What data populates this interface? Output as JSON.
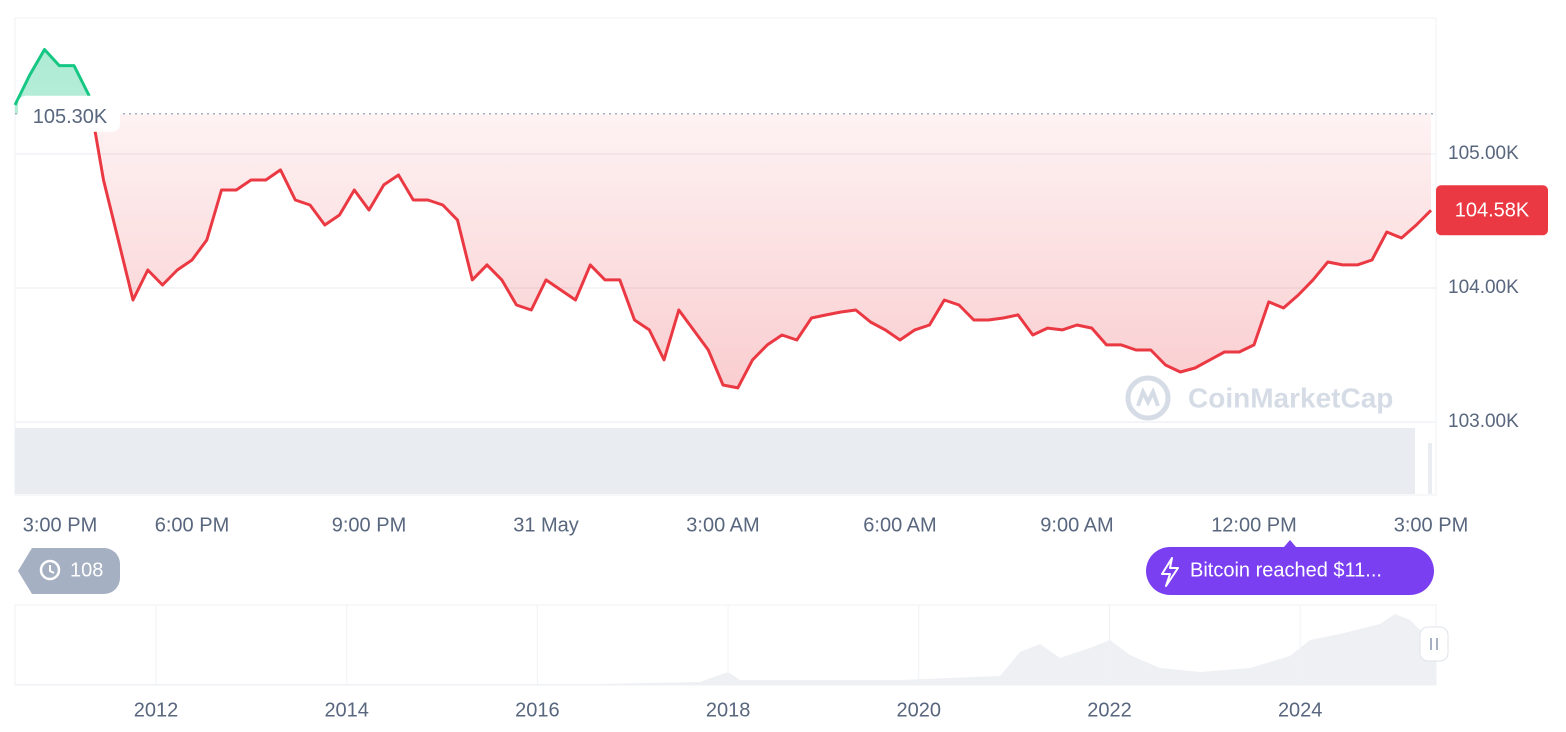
{
  "chart_data": {
    "type": "line",
    "categories": [
      "3:00 PM",
      null,
      null,
      null,
      null,
      null,
      null,
      null,
      null,
      null,
      null,
      null,
      "6:00 PM",
      null,
      null,
      null,
      null,
      null,
      null,
      null,
      null,
      null,
      null,
      null,
      "9:00 PM",
      null,
      null,
      null,
      null,
      null,
      null,
      null,
      null,
      null,
      null,
      null,
      "31 May",
      null,
      null,
      null,
      null,
      null,
      null,
      null,
      null,
      null,
      null,
      null,
      "3:00 AM",
      null,
      null,
      null,
      null,
      null,
      null,
      null,
      null,
      null,
      null,
      null,
      "6:00 AM",
      null,
      null,
      null,
      null,
      null,
      null,
      null,
      null,
      null,
      null,
      null,
      "9:00 AM",
      null,
      null,
      null,
      null,
      null,
      null,
      null,
      null,
      null,
      null,
      null,
      "12:00 PM",
      null,
      null,
      null,
      null,
      null,
      null,
      null,
      null,
      null,
      null,
      null,
      "3:00 PM"
    ],
    "values": [
      105366,
      105590,
      105780,
      105660,
      105660,
      105440,
      104806,
      104358,
      103910,
      104134,
      104022,
      104134,
      104209,
      104358,
      104731,
      104731,
      104806,
      104806,
      104881,
      104657,
      104619,
      104470,
      104545,
      104731,
      104582,
      104769,
      104843,
      104657,
      104657,
      104619,
      104507,
      104060,
      104172,
      104060,
      103873,
      103836,
      104060,
      103985,
      103910,
      104172,
      104060,
      104060,
      103761,
      103687,
      103463,
      103836,
      103687,
      103537,
      103276,
      103254,
      103463,
      103575,
      103649,
      103612,
      103776,
      103799,
      103821,
      103836,
      103746,
      103687,
      103612,
      103687,
      103724,
      103910,
      103873,
      103761,
      103761,
      103776,
      103799,
      103649,
      103701,
      103687,
      103724,
      103701,
      103575,
      103575,
      103537,
      103537,
      103425,
      103373,
      103403,
      103463,
      103522,
      103522,
      103575,
      103896,
      103851,
      103948,
      104060,
      104194,
      104172,
      104172,
      104209,
      104418,
      104373,
      104470,
      104580
    ],
    "up_color": "#16c784",
    "down_color": "#ea3943",
    "ylim": [
      102455,
      106015
    ],
    "yticks": [
      {
        "value": 103000,
        "label": "103.00K"
      },
      {
        "value": 104000,
        "label": "104.00K"
      },
      {
        "value": 105000,
        "label": "105.00K"
      }
    ],
    "grid": true,
    "reference_line": {
      "value": 105300,
      "label": "105.30K"
    },
    "current_price": {
      "value": 104580,
      "label": "104.58K"
    },
    "history_badge": 108,
    "event_badge": "Bitcoin reached $11...",
    "watermark": "CoinMarketCap",
    "navigator_labels": [
      "2012",
      "2014",
      "2016",
      "2018",
      "2020",
      "2022",
      "2024"
    ]
  }
}
